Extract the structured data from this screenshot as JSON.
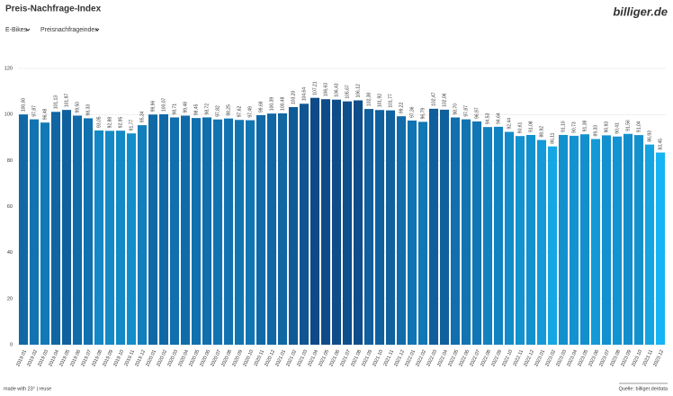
{
  "header": {
    "title": "Preis-Nachfrage-Index",
    "logo": "billiger.de",
    "filters": [
      "E-Bikes",
      "Preisnachfrageindex"
    ]
  },
  "footer": {
    "left": "made with 23° | reuse",
    "right": "Quelle: billiger.de/data"
  },
  "chart_data": {
    "type": "bar",
    "categories": [
      "2019.01",
      "2019.02",
      "2019.03",
      "2019.04",
      "2019.05",
      "2019.06",
      "2019.07",
      "2019.08",
      "2019.09",
      "2019.10",
      "2019.11",
      "2019.12",
      "2020.01",
      "2020.02",
      "2020.03",
      "2020.04",
      "2020.05",
      "2020.06",
      "2020.07",
      "2020.08",
      "2020.09",
      "2020.10",
      "2020.11",
      "2020.12",
      "2021.01",
      "2021.02",
      "2021.03",
      "2021.04",
      "2021.05",
      "2021.06",
      "2021.07",
      "2021.08",
      "2021.09",
      "2021.10",
      "2021.11",
      "2021.12",
      "2022.01",
      "2022.02",
      "2022.03",
      "2022.04",
      "2022.05",
      "2022.06",
      "2022.07",
      "2022.08",
      "2022.09",
      "2022.10",
      "2022.11",
      "2022.12",
      "2023.01",
      "2023.02",
      "2023.03",
      "2023.04",
      "2023.05",
      "2023.06",
      "2023.07",
      "2023.08",
      "2023.09",
      "2023.10",
      "2023.11",
      "2023.12"
    ],
    "values": [
      100.0,
      97.87,
      96.48,
      101.13,
      101.97,
      99.5,
      98.33,
      93.05,
      92.88,
      92.95,
      91.77,
      95.34,
      99.96,
      100.07,
      98.71,
      99.48,
      98.45,
      98.72,
      97.82,
      98.25,
      97.62,
      97.49,
      99.68,
      100.39,
      100.48,
      103.2,
      104.64,
      107.21,
      106.63,
      106.43,
      105.67,
      106.12,
      102.38,
      101.92,
      101.77,
      99.22,
      97.36,
      96.79,
      102.47,
      102.06,
      98.7,
      97.87,
      96.97,
      94.53,
      94.64,
      92.44,
      90.61,
      91.08,
      88.92,
      86.11,
      91.1,
      90.73,
      91.38,
      89.33,
      90.93,
      90.41,
      91.56,
      91.04,
      86.93,
      83.45
    ],
    "value_labels": [
      "100,00",
      "97,87",
      "96,48",
      "101,13",
      "101,97",
      "99,50",
      "98,33",
      "93,05",
      "92,88",
      "92,95",
      "91,77",
      "95,34",
      "99,96",
      "100,07",
      "98,71",
      "99,48",
      "98,45",
      "98,72",
      "97,82",
      "98,25",
      "97,62",
      "97,49",
      "99,68",
      "100,39",
      "100,48",
      "103,20",
      "104,64",
      "107,21",
      "106,63",
      "106,43",
      "105,67",
      "106,12",
      "102,38",
      "101,92",
      "101,77",
      "99,22",
      "97,36",
      "96,79",
      "102,47",
      "102,06",
      "98,70",
      "97,87",
      "96,97",
      "94,53",
      "94,64",
      "92,44",
      "90,61",
      "91,08",
      "88,92",
      "86,11",
      "91,10",
      "90,73",
      "91,38",
      "89,33",
      "90,93",
      "90,41",
      "91,56",
      "91,04",
      "86,93",
      "83,45"
    ],
    "colors": [
      "#1069a6",
      "#1174b1",
      "#1279b6",
      "#1065a2",
      "#10609d",
      "#116ba8",
      "#1170ae",
      "#1388c5",
      "#1389c6",
      "#1389c6",
      "#138dca",
      "#127ebb",
      "#1069a6",
      "#1069a6",
      "#116fad",
      "#116ba8",
      "#1170ae",
      "#116fad",
      "#1174b1",
      "#1172af",
      "#1175b2",
      "#1175b2",
      "#106aa7",
      "#1067a4",
      "#1067a4",
      "#0f5b98",
      "#0f5592",
      "#0e4a87",
      "#0e4c89",
      "#0e4d8a",
      "#0e4f8c",
      "#0e4d8a",
      "#105e9b",
      "#10609d",
      "#10619e",
      "#116ca9",
      "#1174b2",
      "#1277b5",
      "#105e9b",
      "#10609d",
      "#116fad",
      "#1174b1",
      "#1276b4",
      "#1281bf",
      "#1281bf",
      "#138bc8",
      "#1392d0",
      "#1390ce",
      "#149ad7",
      "#15a6e4",
      "#1390ce",
      "#1392d0",
      "#138fcd",
      "#1499d6",
      "#1391cf",
      "#1393d1",
      "#138ecc",
      "#1391cf",
      "#15a3e1",
      "#16b4f2"
    ],
    "ylim": [
      0,
      120
    ],
    "yticks": [
      0,
      20,
      40,
      60,
      80,
      100,
      120
    ],
    "grid": true
  }
}
